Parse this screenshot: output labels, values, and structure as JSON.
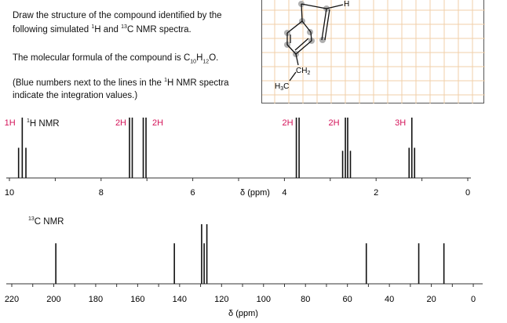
{
  "question": {
    "line1": "Draw the structure of the compound identified by the",
    "line2_a": "following simulated ",
    "line2_sup1": "1",
    "line2_b": "H and ",
    "line2_sup2": "13",
    "line2_c": "C NMR spectra.",
    "formula_prefix": "The molecular formula of the compound is C",
    "formula_c": "10",
    "formula_h": "H",
    "formula_hn": "12",
    "formula_o": "O.",
    "note_a": "(Blue numbers next to the lines in the ",
    "note_sup": "1",
    "note_b": "H NMR spectra",
    "note_line2": "indicate the integration values.)"
  },
  "structure_panel": {
    "labels": {
      "h": "H",
      "ch2": "CH",
      "ch2_sub": "2",
      "h3c_h": "H",
      "h3c_sub": "3",
      "h3c_c": "C"
    },
    "grid_color": "#f0cfa8",
    "atom_highlight_color": "#b0b0b0"
  },
  "chart_data": [
    {
      "type": "line",
      "title_sup": "1",
      "title": "H NMR",
      "xlabel": "δ (ppm)",
      "xlim": [
        10,
        0
      ],
      "xticks": [
        "10",
        "8",
        "6",
        "4",
        "2",
        "0"
      ],
      "integration_color": "#d4145a",
      "peaks": [
        {
          "integration": "1H",
          "lines": [
            [
              9.8,
              0.5
            ],
            [
              9.72,
              1.0
            ],
            [
              9.64,
              0.5
            ]
          ]
        },
        {
          "integration": "2H",
          "lines": [
            [
              7.38,
              1.0
            ],
            [
              7.32,
              1.0
            ]
          ]
        },
        {
          "integration": "2H",
          "lines": [
            [
              7.08,
              1.0
            ],
            [
              7.02,
              1.0
            ]
          ]
        },
        {
          "integration": "2H",
          "lines": [
            [
              3.74,
              1.0
            ],
            [
              3.68,
              1.0
            ]
          ]
        },
        {
          "integration": "2H",
          "lines": [
            [
              2.73,
              0.45
            ],
            [
              2.67,
              1.0
            ],
            [
              2.62,
              1.0
            ],
            [
              2.56,
              0.45
            ]
          ]
        },
        {
          "integration": "3H",
          "lines": [
            [
              1.28,
              0.5
            ],
            [
              1.22,
              1.0
            ],
            [
              1.16,
              0.5
            ]
          ]
        }
      ]
    },
    {
      "type": "line",
      "title_sup": "13",
      "title": "C NMR",
      "xlabel": "δ (ppm)",
      "xlim": [
        220,
        0
      ],
      "xticks": [
        "220",
        "200",
        "180",
        "160",
        "140",
        "120",
        "100",
        "80",
        "60",
        "40",
        "20",
        "0"
      ],
      "peaks": [
        [
          199,
          0.68
        ],
        [
          142.5,
          0.68
        ],
        [
          129.5,
          1.0
        ],
        [
          128.3,
          0.68
        ],
        [
          127,
          1.0
        ],
        [
          51,
          0.68
        ],
        [
          26,
          0.68
        ],
        [
          14,
          0.68
        ]
      ]
    }
  ]
}
